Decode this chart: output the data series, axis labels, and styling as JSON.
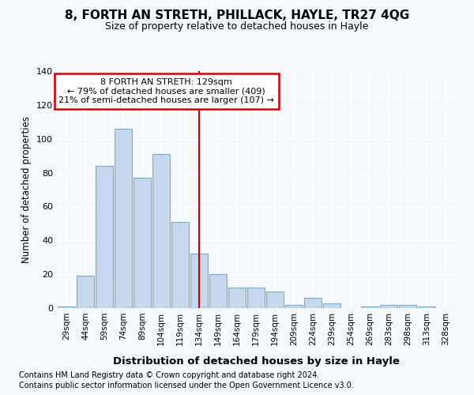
{
  "title": "8, FORTH AN STRETH, PHILLACK, HAYLE, TR27 4QG",
  "subtitle": "Size of property relative to detached houses in Hayle",
  "xlabel": "Distribution of detached houses by size in Hayle",
  "ylabel": "Number of detached properties",
  "categories": [
    "29sqm",
    "44sqm",
    "59sqm",
    "74sqm",
    "89sqm",
    "104sqm",
    "119sqm",
    "134sqm",
    "149sqm",
    "164sqm",
    "179sqm",
    "194sqm",
    "209sqm",
    "224sqm",
    "239sqm",
    "254sqm",
    "269sqm",
    "283sqm",
    "298sqm",
    "313sqm",
    "328sqm"
  ],
  "values": [
    1,
    19,
    84,
    106,
    77,
    91,
    51,
    32,
    20,
    12,
    12,
    10,
    2,
    6,
    3,
    0,
    1,
    2,
    2,
    1,
    0
  ],
  "bar_color": "#c5d8ee",
  "bar_edge_color": "#7aafd4",
  "vline_x": 7,
  "vline_color": "#cc0000",
  "annotation_line1": "8 FORTH AN STRETH: 129sqm",
  "annotation_line2": "← 79% of detached houses are smaller (409)",
  "annotation_line3": "21% of semi-detached houses are larger (107) →",
  "annotation_box_color": "#ffffff",
  "annotation_box_edge": "#cc0000",
  "bg_color": "#f4f7fb",
  "grid_color": "#ffffff",
  "ylim": [
    0,
    140
  ],
  "yticks": [
    0,
    20,
    40,
    60,
    80,
    100,
    120,
    140
  ],
  "footer1": "Contains HM Land Registry data © Crown copyright and database right 2024.",
  "footer2": "Contains public sector information licensed under the Open Government Licence v3.0."
}
